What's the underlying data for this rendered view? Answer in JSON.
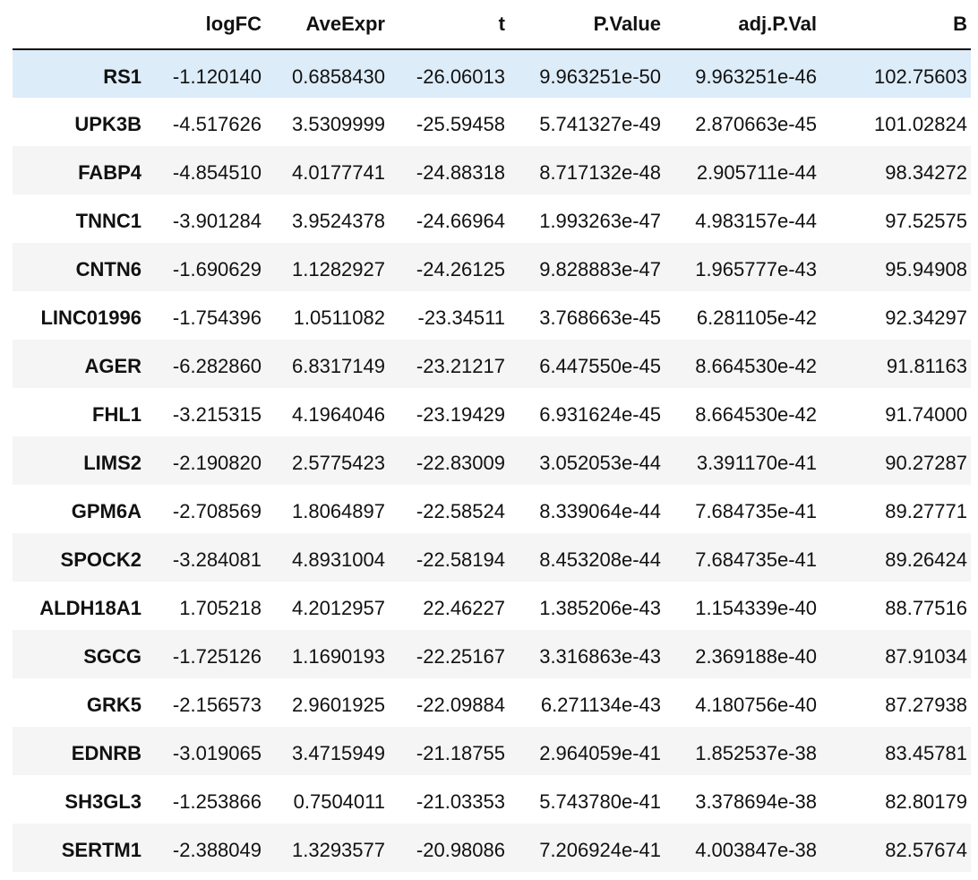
{
  "table": {
    "columns": [
      "",
      "logFC",
      "AveExpr",
      "t",
      "P.Value",
      "adj.P.Val",
      "B"
    ],
    "hovered_row_index": 0,
    "rows": [
      {
        "gene": "RS1",
        "logFC": "-1.120140",
        "AveExpr": "0.6858430",
        "t": "-26.06013",
        "P.Value": "9.963251e-50",
        "adj.P.Val": "9.963251e-46",
        "B": "102.75603"
      },
      {
        "gene": "UPK3B",
        "logFC": "-4.517626",
        "AveExpr": "3.5309999",
        "t": "-25.59458",
        "P.Value": "5.741327e-49",
        "adj.P.Val": "2.870663e-45",
        "B": "101.02824"
      },
      {
        "gene": "FABP4",
        "logFC": "-4.854510",
        "AveExpr": "4.0177741",
        "t": "-24.88318",
        "P.Value": "8.717132e-48",
        "adj.P.Val": "2.905711e-44",
        "B": "98.34272"
      },
      {
        "gene": "TNNC1",
        "logFC": "-3.901284",
        "AveExpr": "3.9524378",
        "t": "-24.66964",
        "P.Value": "1.993263e-47",
        "adj.P.Val": "4.983157e-44",
        "B": "97.52575"
      },
      {
        "gene": "CNTN6",
        "logFC": "-1.690629",
        "AveExpr": "1.1282927",
        "t": "-24.26125",
        "P.Value": "9.828883e-47",
        "adj.P.Val": "1.965777e-43",
        "B": "95.94908"
      },
      {
        "gene": "LINC01996",
        "logFC": "-1.754396",
        "AveExpr": "1.0511082",
        "t": "-23.34511",
        "P.Value": "3.768663e-45",
        "adj.P.Val": "6.281105e-42",
        "B": "92.34297"
      },
      {
        "gene": "AGER",
        "logFC": "-6.282860",
        "AveExpr": "6.8317149",
        "t": "-23.21217",
        "P.Value": "6.447550e-45",
        "adj.P.Val": "8.664530e-42",
        "B": "91.81163"
      },
      {
        "gene": "FHL1",
        "logFC": "-3.215315",
        "AveExpr": "4.1964046",
        "t": "-23.19429",
        "P.Value": "6.931624e-45",
        "adj.P.Val": "8.664530e-42",
        "B": "91.74000"
      },
      {
        "gene": "LIMS2",
        "logFC": "-2.190820",
        "AveExpr": "2.5775423",
        "t": "-22.83009",
        "P.Value": "3.052053e-44",
        "adj.P.Val": "3.391170e-41",
        "B": "90.27287"
      },
      {
        "gene": "GPM6A",
        "logFC": "-2.708569",
        "AveExpr": "1.8064897",
        "t": "-22.58524",
        "P.Value": "8.339064e-44",
        "adj.P.Val": "7.684735e-41",
        "B": "89.27771"
      },
      {
        "gene": "SPOCK2",
        "logFC": "-3.284081",
        "AveExpr": "4.8931004",
        "t": "-22.58194",
        "P.Value": "8.453208e-44",
        "adj.P.Val": "7.684735e-41",
        "B": "89.26424"
      },
      {
        "gene": "ALDH18A1",
        "logFC": "1.705218",
        "AveExpr": "4.2012957",
        "t": "22.46227",
        "P.Value": "1.385206e-43",
        "adj.P.Val": "1.154339e-40",
        "B": "88.77516"
      },
      {
        "gene": "SGCG",
        "logFC": "-1.725126",
        "AveExpr": "1.1690193",
        "t": "-22.25167",
        "P.Value": "3.316863e-43",
        "adj.P.Val": "2.369188e-40",
        "B": "87.91034"
      },
      {
        "gene": "GRK5",
        "logFC": "-2.156573",
        "AveExpr": "2.9601925",
        "t": "-22.09884",
        "P.Value": "6.271134e-43",
        "adj.P.Val": "4.180756e-40",
        "B": "87.27938"
      },
      {
        "gene": "EDNRB",
        "logFC": "-3.019065",
        "AveExpr": "3.4715949",
        "t": "-21.18755",
        "P.Value": "2.964059e-41",
        "adj.P.Val": "1.852537e-38",
        "B": "83.45781"
      },
      {
        "gene": "SH3GL3",
        "logFC": "-1.253866",
        "AveExpr": "0.7504011",
        "t": "-21.03353",
        "P.Value": "5.743780e-41",
        "adj.P.Val": "3.378694e-38",
        "B": "82.80179"
      },
      {
        "gene": "SERTM1",
        "logFC": "-2.388049",
        "AveExpr": "1.3293577",
        "t": "-20.98086",
        "P.Value": "7.206924e-41",
        "adj.P.Val": "4.003847e-38",
        "B": "82.57674"
      }
    ]
  }
}
